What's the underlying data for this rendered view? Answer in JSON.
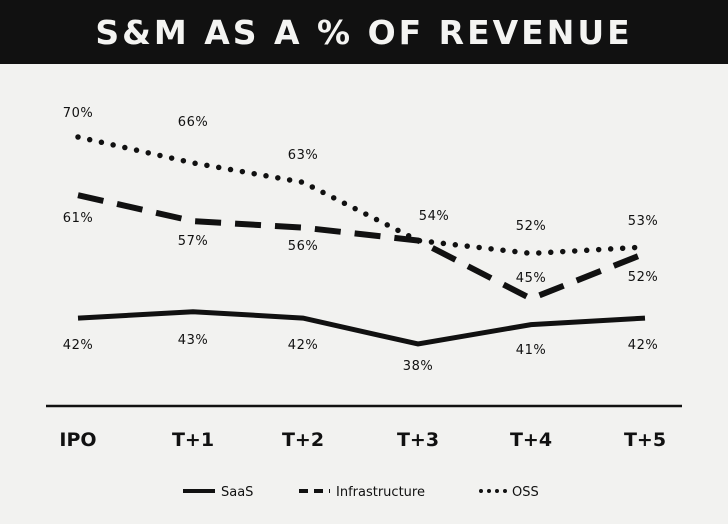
{
  "title": "S&M AS A % OF REVENUE",
  "chart_data": {
    "type": "line",
    "title": "S&M AS A % OF REVENUE",
    "categories": [
      "IPO",
      "T+1",
      "T+2",
      "T+3",
      "T+4",
      "T+5"
    ],
    "series": [
      {
        "name": "SaaS",
        "style": "solid",
        "values": [
          42,
          43,
          42,
          38,
          41,
          42
        ],
        "labels": [
          "42%",
          "43%",
          "42%",
          "38%",
          "41%",
          "42%"
        ],
        "label_position": "below"
      },
      {
        "name": "Infrastructure",
        "style": "dashed",
        "values": [
          61,
          57,
          56,
          54,
          45,
          52
        ],
        "labels": [
          "61%",
          "57%",
          "56%",
          "",
          "45%",
          "52%"
        ],
        "label_position": "below"
      },
      {
        "name": "OSS",
        "style": "dotted",
        "values": [
          70,
          66,
          63,
          54,
          52,
          53
        ],
        "labels": [
          "70%",
          "66%",
          "63%",
          "54%",
          "52%",
          "53%"
        ],
        "label_position": "above"
      }
    ],
    "xlabel": "",
    "ylabel": "",
    "ylim": [
      30,
      75
    ],
    "grid": false,
    "legend": "bottom",
    "line_color": "#111111"
  }
}
